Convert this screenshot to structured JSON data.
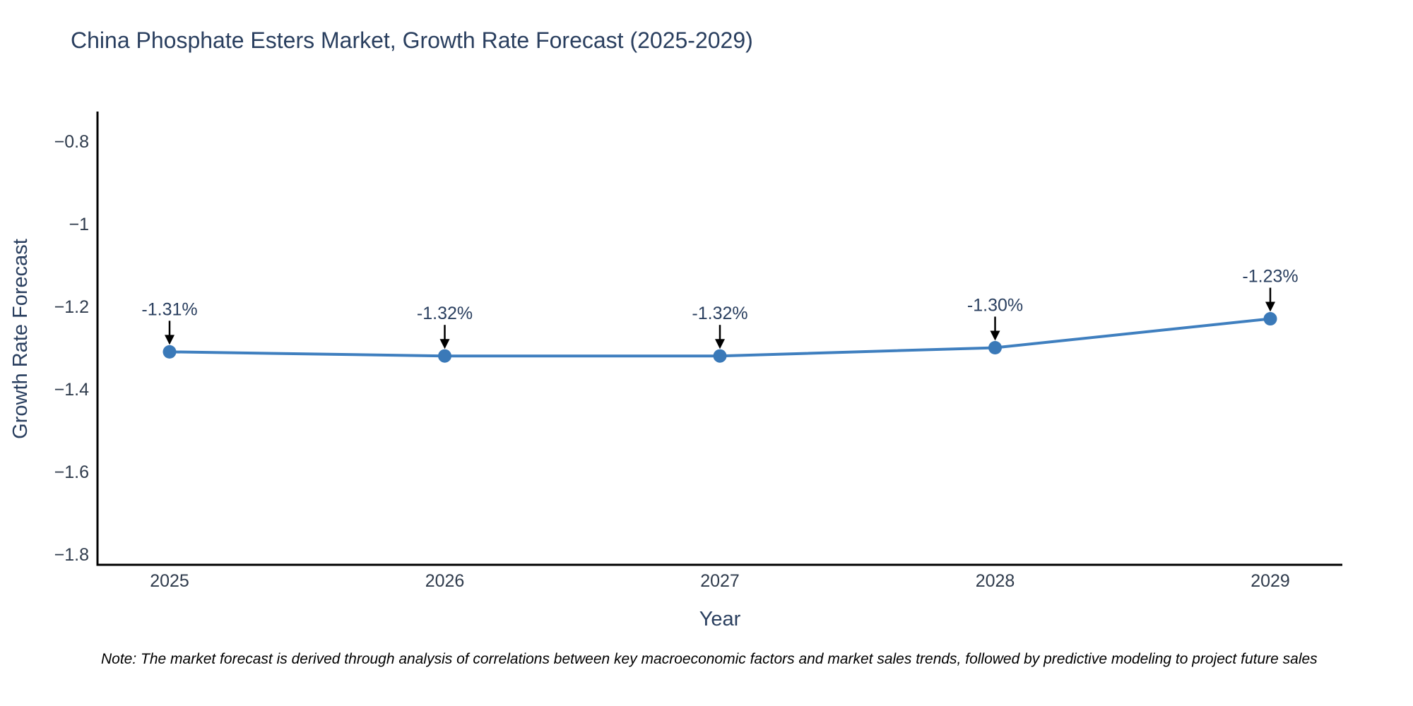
{
  "chart_data": {
    "type": "line",
    "title": "China Phosphate Esters Market, Growth Rate Forecast (2025-2029)",
    "xlabel": "Year",
    "ylabel": "Growth Rate Forecast",
    "x": [
      2025,
      2026,
      2027,
      2028,
      2029
    ],
    "series": [
      {
        "name": "Growth Rate Forecast",
        "values": [
          -1.31,
          -1.32,
          -1.32,
          -1.3,
          -1.23
        ],
        "point_labels": [
          "-1.31%",
          "-1.32%",
          "-1.32%",
          "-1.30%",
          "-1.23%"
        ]
      }
    ],
    "x_tick_labels": [
      "2025",
      "2026",
      "2027",
      "2028",
      "2029"
    ],
    "y_ticks": [
      -0.8,
      -1.0,
      -1.2,
      -1.4,
      -1.6,
      -1.8
    ],
    "y_tick_labels": [
      "−0.8",
      "−1",
      "−1.2",
      "−1.4",
      "−1.6",
      "−1.8"
    ],
    "ylim": [
      -1.83,
      -0.73
    ],
    "xlim": [
      2024.74,
      2029.26
    ],
    "grid": false,
    "legend_position": "none",
    "note": "Note: The market forecast is derived through analysis of correlations between key macroeconomic factors and market sales trends, followed by predictive modeling to project future sales",
    "colors": {
      "line": "#3f7fbf",
      "marker": "#3a79b8",
      "axis": "#000000",
      "text": "#2a3f5f",
      "tick_text": "#2f3b4c",
      "arrow": "#000000",
      "note_text": "#000000",
      "background": "#ffffff"
    }
  }
}
